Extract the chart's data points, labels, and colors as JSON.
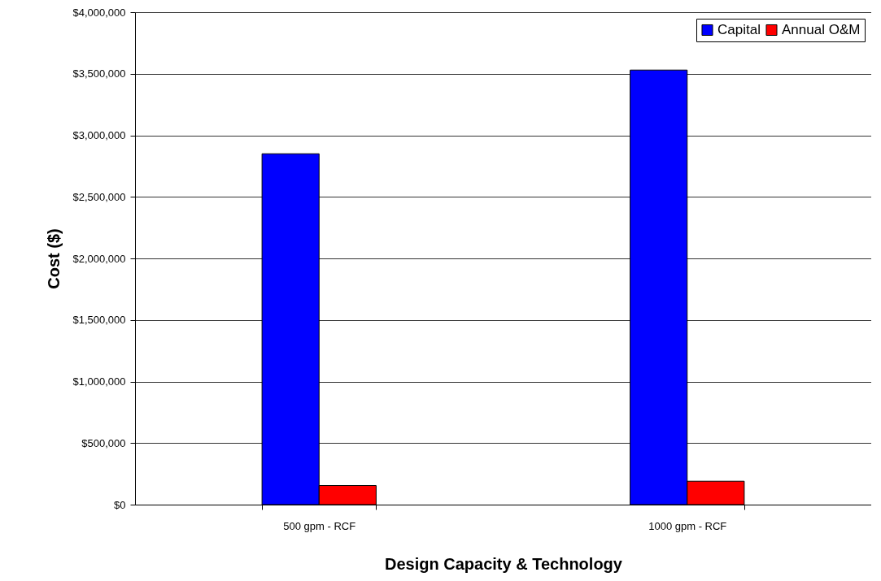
{
  "chart_data": {
    "type": "bar",
    "xlabel": "Design Capacity & Technology",
    "ylabel": "Cost ($)",
    "categories": [
      "500 gpm - RCF",
      "1000 gpm - RCF"
    ],
    "series": [
      {
        "name": "Capital",
        "color": "#0000ff",
        "values": [
          2850000,
          3530000
        ]
      },
      {
        "name": "Annual O&M",
        "color": "#ff0000",
        "values": [
          155000,
          190000
        ]
      }
    ],
    "ylim": [
      0,
      4000000
    ],
    "yticks": [
      {
        "value": 0,
        "label": "$0"
      },
      {
        "value": 500000,
        "label": "$500,000"
      },
      {
        "value": 1000000,
        "label": "$1,000,000"
      },
      {
        "value": 1500000,
        "label": "$1,500,000"
      },
      {
        "value": 2000000,
        "label": "$2,000,000"
      },
      {
        "value": 2500000,
        "label": "$2,500,000"
      },
      {
        "value": 3000000,
        "label": "$3,000,000"
      },
      {
        "value": 3500000,
        "label": "$3,500,000"
      },
      {
        "value": 4000000,
        "label": "$4,000,000"
      }
    ],
    "grid": "y",
    "legend": "top right"
  }
}
